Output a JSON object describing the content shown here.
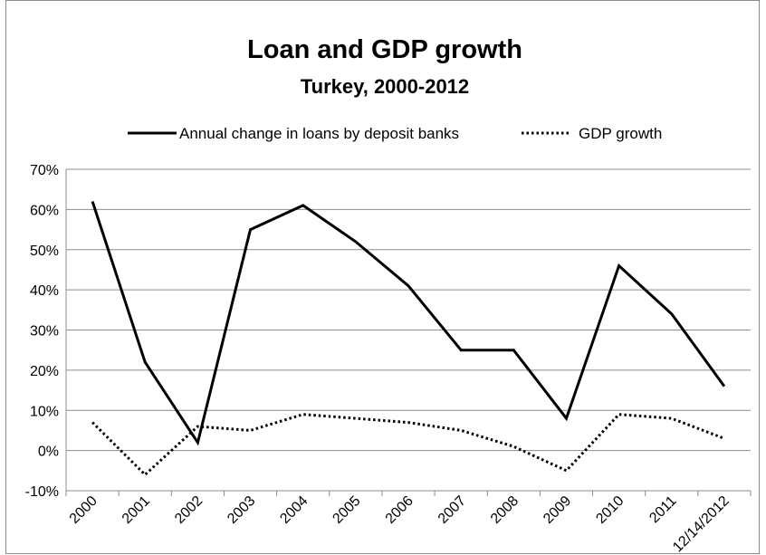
{
  "chart_data": {
    "type": "line",
    "title": "Loan and GDP growth",
    "subtitle": "Turkey, 2000-2012",
    "categories": [
      "2000",
      "2001",
      "2002",
      "2003",
      "2004",
      "2005",
      "2006",
      "2007",
      "2008",
      "2009",
      "2010",
      "2011",
      "12/14/2012"
    ],
    "ylim": [
      -10,
      70
    ],
    "yticks": [
      -10,
      0,
      10,
      20,
      30,
      40,
      50,
      60,
      70
    ],
    "ytick_suffix": "%",
    "grid": "horizontal",
    "legend_position": "top",
    "series": [
      {
        "name": "Annual change in loans by deposit banks",
        "style": "solid",
        "color": "#000000",
        "values": [
          62,
          22,
          2,
          55,
          61,
          52,
          41,
          25,
          25,
          8,
          46,
          34,
          16
        ]
      },
      {
        "name": "GDP growth",
        "style": "dotted",
        "color": "#000000",
        "values": [
          7,
          -6,
          6,
          5,
          9,
          8,
          7,
          5,
          1,
          -5,
          9,
          8,
          3
        ]
      }
    ]
  }
}
